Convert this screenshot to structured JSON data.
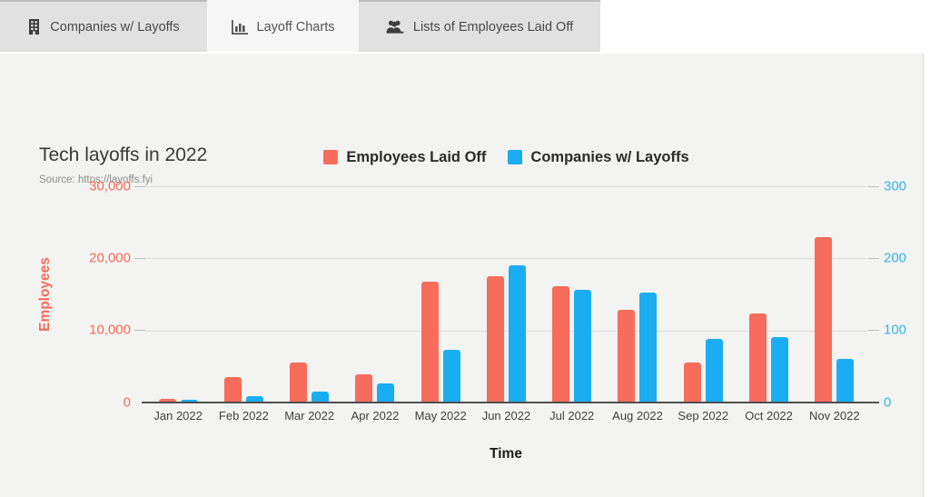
{
  "tabs": [
    {
      "label": "Companies w/ Layoffs",
      "icon": "building-icon",
      "active": false
    },
    {
      "label": "Layoff Charts",
      "icon": "bar-chart-icon",
      "active": true
    },
    {
      "label": "Lists of Employees Laid Off",
      "icon": "people-icon",
      "active": false
    }
  ],
  "header": {
    "title": "Tech layoffs in 2022",
    "source": "Source: https://layoffs.fyi"
  },
  "chart_data": {
    "type": "bar",
    "title": "Tech layoffs in 2022",
    "categories": [
      "Jan 2022",
      "Feb 2022",
      "Mar 2022",
      "Apr 2022",
      "May 2022",
      "Jun 2022",
      "Jul 2022",
      "Aug 2022",
      "Sep 2022",
      "Oct 2022",
      "Nov 2022"
    ],
    "series": [
      {
        "name": "Employees Laid Off",
        "axis": "left",
        "color": "#f86c5b",
        "values": [
          500,
          3500,
          5600,
          3900,
          16800,
          17500,
          16100,
          12800,
          5600,
          12300,
          22900
        ]
      },
      {
        "name": "Companies w/ Layoffs",
        "axis": "right",
        "color": "#1badf2",
        "values": [
          4,
          9,
          15,
          27,
          73,
          190,
          156,
          152,
          88,
          91,
          60
        ]
      }
    ],
    "xlabel": "Time",
    "left_axis": {
      "label": "Employees",
      "color": "#f66b57",
      "max": 30000,
      "ticks": [
        "30,000",
        "20,000",
        "10,000",
        "0"
      ]
    },
    "right_axis": {
      "label": "",
      "color": "#31b4f2",
      "max": 300,
      "ticks": [
        "300",
        "200",
        "100",
        "0"
      ]
    },
    "grid": true,
    "legend_position": "top-center"
  }
}
